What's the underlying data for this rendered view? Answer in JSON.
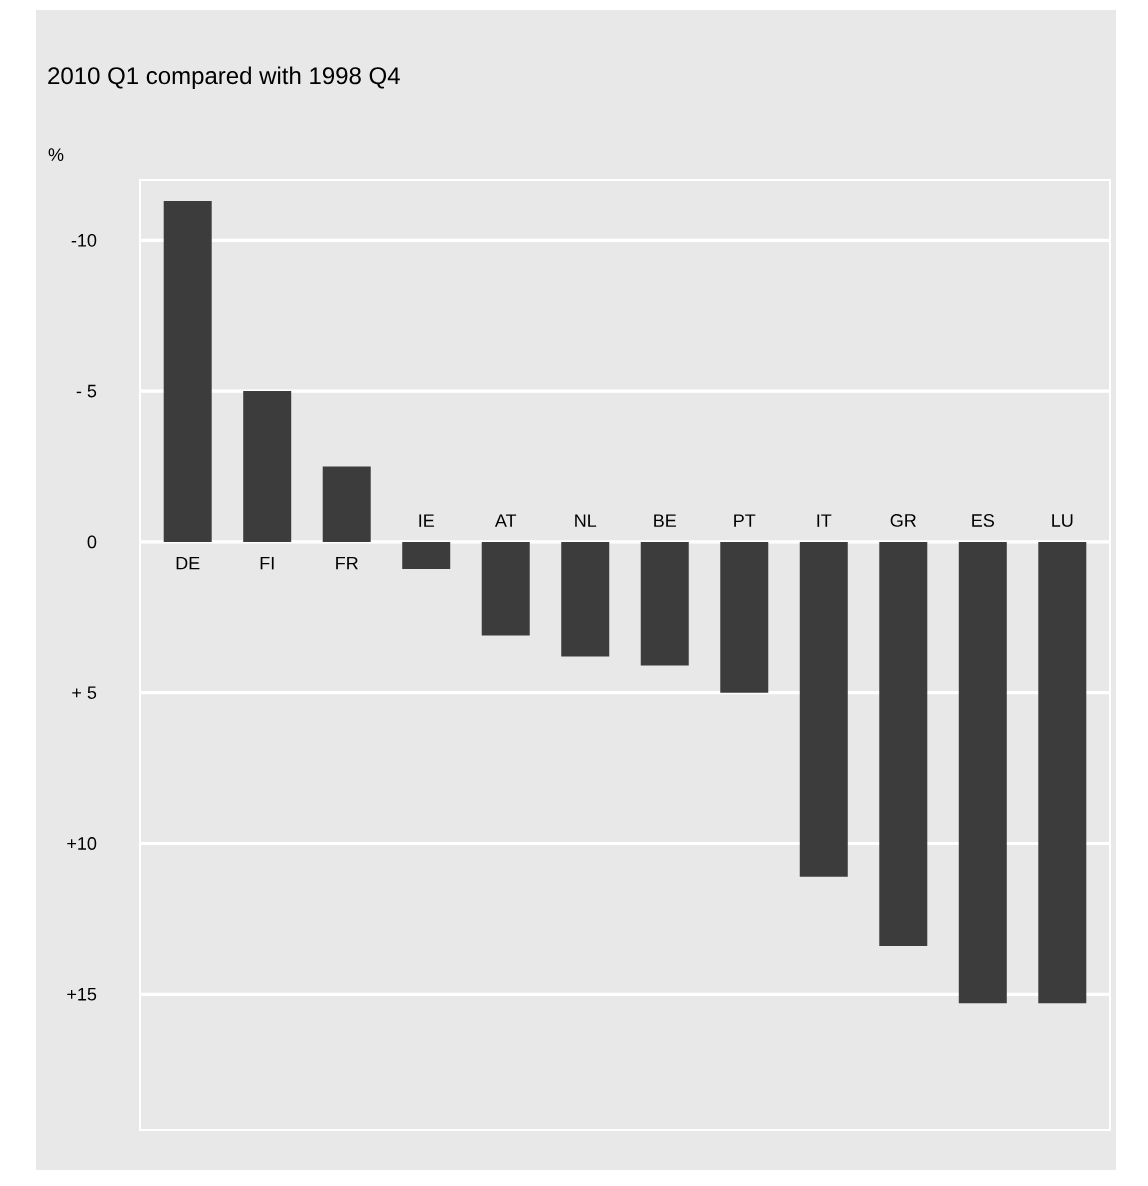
{
  "chart_data": {
    "type": "bar",
    "title": "2010 Q1 compared with 1998 Q4",
    "ylabel": "%",
    "categories": [
      "DE",
      "FI",
      "FR",
      "IE",
      "AT",
      "NL",
      "BE",
      "PT",
      "IT",
      "GR",
      "ES",
      "LU"
    ],
    "values": [
      -11.3,
      -5.0,
      -2.5,
      0.9,
      3.1,
      3.8,
      4.1,
      5.0,
      11.1,
      13.4,
      15.3,
      15.3
    ],
    "color": "#3c3c3c",
    "ylim": [
      19.5,
      -12
    ],
    "yticks": [
      {
        "value": -10,
        "label": "-10"
      },
      {
        "value": -5,
        "label": "- 5"
      },
      0,
      {
        "value": 5,
        "label": "+ 5"
      },
      {
        "value": 10,
        "label": "+10"
      },
      {
        "value": 15,
        "label": "+15"
      }
    ],
    "grid": "y"
  }
}
